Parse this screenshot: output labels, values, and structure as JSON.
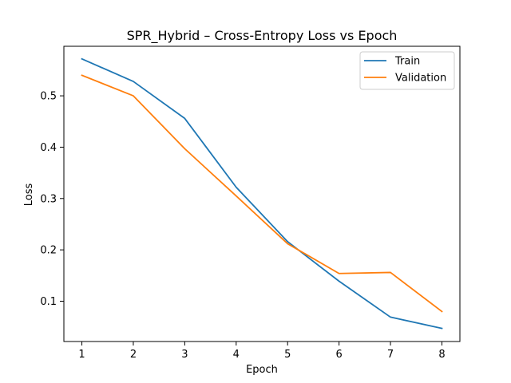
{
  "chart_data": {
    "type": "line",
    "title": "SPR_Hybrid – Cross-Entropy Loss vs Epoch",
    "xlabel": "Epoch",
    "ylabel": "Loss",
    "x": [
      1,
      2,
      3,
      4,
      5,
      6,
      7,
      8
    ],
    "xlim": [
      0.65,
      8.35
    ],
    "ylim": [
      0.0215,
      0.5965
    ],
    "xticks": [
      "1",
      "2",
      "3",
      "4",
      "5",
      "6",
      "7",
      "8"
    ],
    "yticks": [
      "0.1",
      "0.2",
      "0.3",
      "0.4",
      "0.5"
    ],
    "grid": false,
    "legend_position": "top-right",
    "series": [
      {
        "name": "Train",
        "color": "#1f77b4",
        "values": [
          0.572,
          0.528,
          0.456,
          0.322,
          0.216,
          0.139,
          0.069,
          0.047
        ]
      },
      {
        "name": "Validation",
        "color": "#ff7f0e",
        "values": [
          0.54,
          0.5,
          0.397,
          0.305,
          0.212,
          0.154,
          0.156,
          0.08
        ]
      }
    ]
  }
}
